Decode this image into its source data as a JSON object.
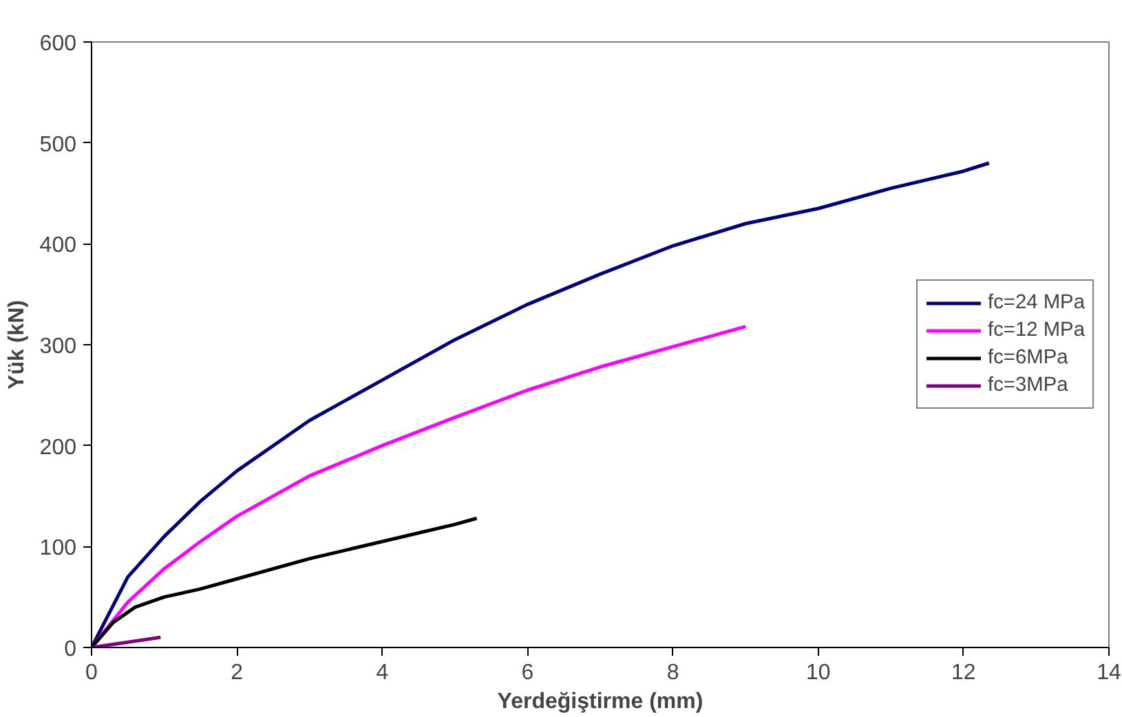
{
  "chart_data": {
    "type": "line",
    "xlabel": "Yerdeğiştirme (mm)",
    "ylabel": "Yük (kN)",
    "xlim": [
      0,
      14
    ],
    "xticks": [
      0,
      2,
      4,
      6,
      8,
      10,
      12,
      14
    ],
    "ylim": [
      0,
      600
    ],
    "yticks": [
      0,
      100,
      200,
      300,
      400,
      500,
      600
    ],
    "grid": false,
    "legend": "right",
    "marker": "none",
    "line_style": "solid",
    "series": [
      {
        "name": "fc=24 MPa",
        "color": "#000080",
        "x": [
          0,
          0.5,
          1,
          1.5,
          2,
          3,
          4,
          5,
          6,
          7,
          8,
          9,
          10,
          11,
          12,
          12.35
        ],
        "values": [
          0,
          70,
          110,
          145,
          175,
          225,
          265,
          305,
          340,
          370,
          398,
          420,
          435,
          455,
          472,
          480
        ]
      },
      {
        "name": "fc=12 MPa",
        "color": "#ff00ff",
        "x": [
          0,
          0.5,
          1,
          1.5,
          2,
          3,
          4,
          5,
          6,
          7,
          8,
          9
        ],
        "values": [
          0,
          45,
          78,
          105,
          130,
          170,
          200,
          228,
          255,
          278,
          298,
          318
        ]
      },
      {
        "name": "fc=6MPa",
        "color": "#000000",
        "x": [
          0,
          0.3,
          0.6,
          1,
          1.5,
          2,
          3,
          4,
          5,
          5.3
        ],
        "values": [
          0,
          25,
          40,
          50,
          58,
          68,
          88,
          105,
          122,
          128
        ]
      },
      {
        "name": "fc=3MPa",
        "color": "#800080",
        "x": [
          0,
          0.95
        ],
        "values": [
          0,
          10
        ]
      }
    ]
  }
}
